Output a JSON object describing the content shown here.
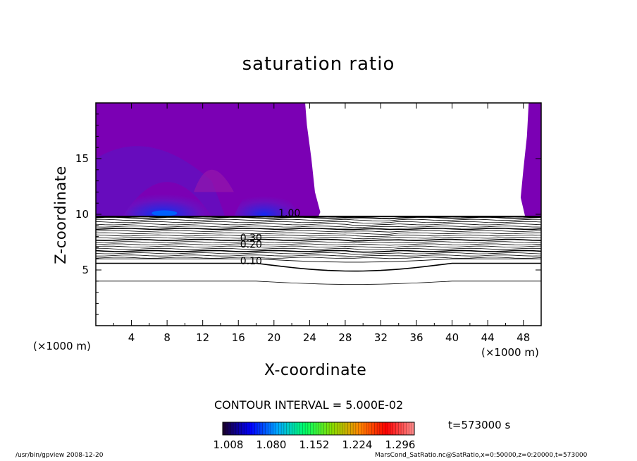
{
  "chart_data": {
    "type": "heatmap",
    "title": "saturation ratio",
    "xlabel": "X-coordinate",
    "ylabel": "Z-coordinate",
    "x_unit_left": "(×1000 m)",
    "x_unit_right": "(×1000 m)",
    "xlim": [
      0,
      50
    ],
    "ylim": [
      0,
      20
    ],
    "x_ticks": [
      4,
      8,
      12,
      16,
      20,
      24,
      28,
      32,
      36,
      40,
      44,
      48
    ],
    "y_ticks": [
      5,
      10,
      15
    ],
    "contour_interval": "CONTOUR INTERVAL = 5.000E-02",
    "contour_labels": [
      {
        "text": "0.10",
        "x": 16.2,
        "z": 5.5
      },
      {
        "text": "0.20",
        "x": 16.2,
        "z": 7.0
      },
      {
        "text": "0.30",
        "x": 16.2,
        "z": 7.6
      },
      {
        "text": "1.00",
        "x": 20.5,
        "z": 9.8
      }
    ],
    "shaded_regions": [
      {
        "name": "left-supersaturated",
        "x_range": [
          0,
          25
        ],
        "z_range": [
          9.8,
          20
        ]
      },
      {
        "name": "right-supersaturated",
        "x_range": [
          46.5,
          50
        ],
        "z_range": [
          9.8,
          20
        ]
      }
    ],
    "colorbar": {
      "ticks": [
        "1.008",
        "1.080",
        "1.152",
        "1.224",
        "1.296"
      ],
      "colors": [
        "#1a0033",
        "#0000ff",
        "#00aaff",
        "#00ff66",
        "#88dd00",
        "#ff8800",
        "#ff0000",
        "#ff8888"
      ]
    },
    "time": "t=573000 s",
    "fill_color": "#7b00b4"
  },
  "footer": {
    "left": "/usr/bin/gpview   2008-12-20",
    "right": "MarsCond_SatRatio.nc@SatRatio,x=0:50000,z=0:20000,t=573000"
  }
}
